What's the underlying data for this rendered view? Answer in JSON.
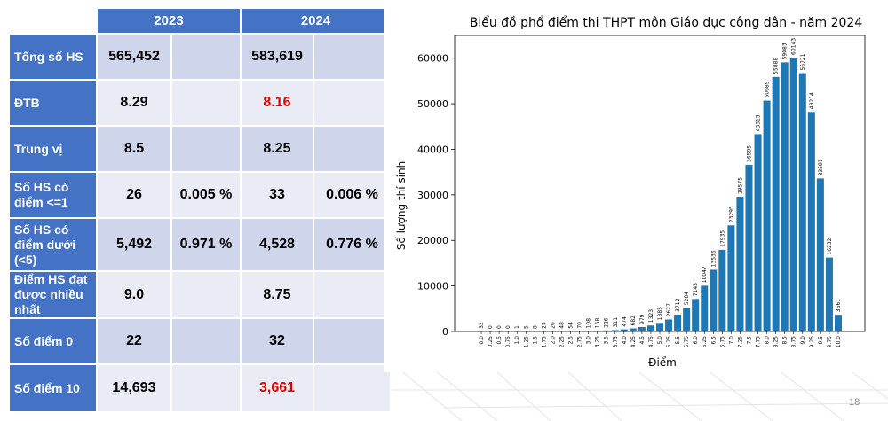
{
  "table": {
    "headers": [
      "",
      "2023",
      "",
      "2024",
      ""
    ],
    "rows": [
      {
        "label": "Tổng số HS",
        "v2023": "565,452",
        "p2023": "",
        "v2024": "583,619",
        "p2024": "",
        "red2024": false
      },
      {
        "label": "ĐTB",
        "v2023": "8.29",
        "p2023": "",
        "v2024": "8.16",
        "p2024": "",
        "red2024": true
      },
      {
        "label": "Trung vị",
        "v2023": "8.5",
        "p2023": "",
        "v2024": "8.25",
        "p2024": "",
        "red2024": false
      },
      {
        "label": "Số HS có điểm <=1",
        "v2023": "26",
        "p2023": "0.005 %",
        "v2024": "33",
        "p2024": "0.006 %",
        "red2024": false
      },
      {
        "label": "Số HS có điểm dưới (<5)",
        "v2023": "5,492",
        "p2023": "0.971 %",
        "v2024": "4,528",
        "p2024": "0.776 %",
        "red2024": false
      },
      {
        "label": "Điểm HS đạt được nhiều nhất",
        "v2023": "9.0",
        "p2023": "",
        "v2024": "8.75",
        "p2024": "",
        "red2024": false
      },
      {
        "label": "Số điểm 0",
        "v2023": "22",
        "p2023": "",
        "v2024": "32",
        "p2024": "",
        "red2024": false
      },
      {
        "label": "Số điểm 10",
        "v2023": "14,693",
        "p2023": "",
        "v2024": "3,661",
        "p2024": "",
        "red2024": true
      }
    ]
  },
  "page_number": "18",
  "chart_data": {
    "type": "bar",
    "title": "Biểu đồ phổ điểm thi THPT môn Giáo dục công dân - năm 2024",
    "xlabel": "Điểm",
    "ylabel": "Số lượng thí sinh",
    "categories": [
      "0.0",
      "0.25",
      "0.5",
      "0.75",
      "1.0",
      "1.25",
      "1.5",
      "1.75",
      "2.0",
      "2.25",
      "2.5",
      "2.75",
      "3.0",
      "3.25",
      "3.5",
      "3.75",
      "4.0",
      "4.25",
      "4.5",
      "4.75",
      "5.0",
      "5.25",
      "5.5",
      "5.75",
      "6.0",
      "6.25",
      "6.5",
      "6.75",
      "7.0",
      "7.25",
      "7.5",
      "7.75",
      "8.0",
      "8.25",
      "8.5",
      "8.75",
      "9.0",
      "9.25",
      "9.5",
      "9.75",
      "10.0"
    ],
    "values": [
      32,
      0,
      0,
      0,
      1,
      5,
      8,
      23,
      26,
      48,
      54,
      70,
      108,
      158,
      226,
      311,
      474,
      682,
      979,
      1323,
      1885,
      2627,
      3712,
      5204,
      7143,
      10047,
      13536,
      17935,
      23295,
      29575,
      36595,
      43315,
      50689,
      55888,
      59083,
      60143,
      56721,
      48214,
      33591,
      16232,
      3661
    ],
    "ylim": [
      0,
      65000
    ],
    "yticks": [
      0,
      10000,
      20000,
      30000,
      40000,
      50000,
      60000
    ],
    "bar_color": "#1f77b4",
    "grid": false
  }
}
